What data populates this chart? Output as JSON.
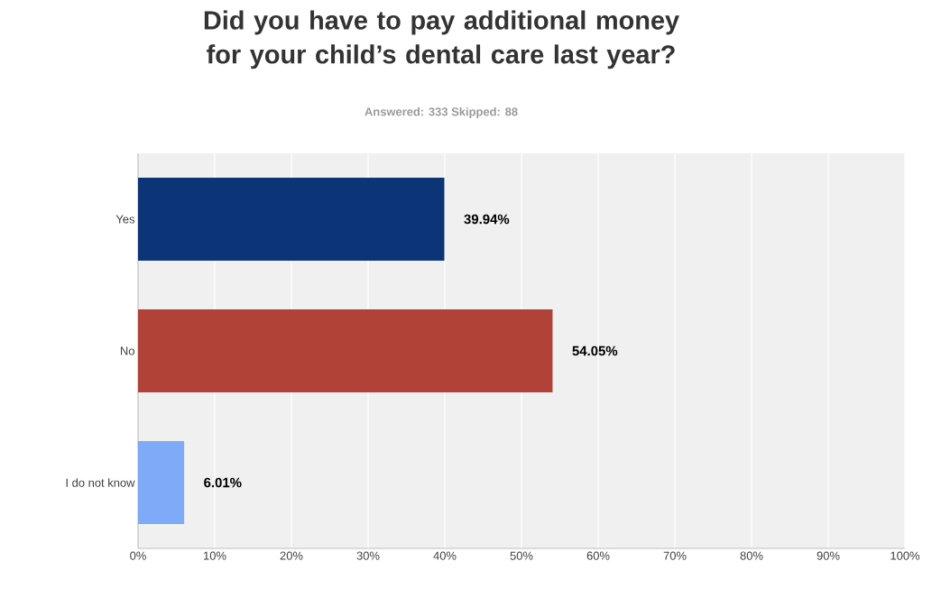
{
  "chart_data": {
    "type": "bar",
    "orientation": "horizontal",
    "title": "Did you have to pay additional money for your child’s dental care last year?",
    "subtitle": "Answered: 333    Skipped: 88",
    "categories": [
      "Yes",
      "No",
      "I do not know"
    ],
    "values": [
      39.94,
      54.05,
      6.01
    ],
    "value_labels": [
      "39.94%",
      "54.05%",
      "6.01%"
    ],
    "colors": [
      "#0b3577",
      "#b04238",
      "#7faaf7"
    ],
    "xlim": [
      0,
      100
    ],
    "xticks": [
      {
        "value": 0,
        "label": "0%"
      },
      {
        "value": 10,
        "label": "10%"
      },
      {
        "value": 20,
        "label": "20%"
      },
      {
        "value": 30,
        "label": "30%"
      },
      {
        "value": 40,
        "label": "40%"
      },
      {
        "value": 50,
        "label": "50%"
      },
      {
        "value": 60,
        "label": "60%"
      },
      {
        "value": 70,
        "label": "70%"
      },
      {
        "value": 80,
        "label": "80%"
      },
      {
        "value": 90,
        "label": "90%"
      },
      {
        "value": 100,
        "label": "100%"
      }
    ],
    "grid": "x"
  }
}
